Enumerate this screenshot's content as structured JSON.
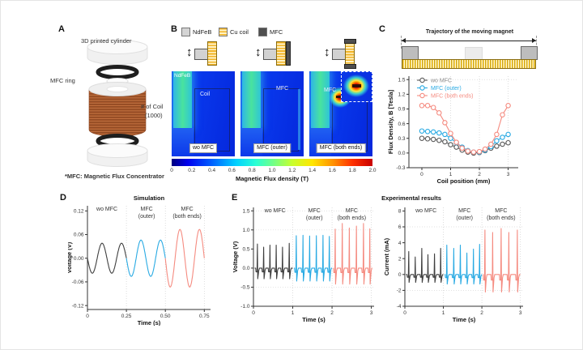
{
  "panelA": {
    "label": "A",
    "ann_cylinder": "3D printed cylinder",
    "ann_ring": "MFC ring",
    "ann_coil1": "# of Coil",
    "ann_coil2": "(1000)",
    "footnote": "*MFC: Magnetic Flux Concentrator"
  },
  "panelB": {
    "label": "B",
    "legend": [
      {
        "name": "NdFeB",
        "color": "#d4d4d4"
      },
      {
        "name": "Cu coil",
        "color": "#f2b325"
      },
      {
        "name": "MFC",
        "color": "#4f4f4f"
      }
    ],
    "maps": [
      {
        "tag": "wo MFC",
        "label_magnet": "NdFeB",
        "label_region": "Coil"
      },
      {
        "tag": "MFC (outer)",
        "label_region": "MFC"
      },
      {
        "tag": "MFC (both ends)",
        "label_region": "MFC"
      }
    ],
    "colorbar": {
      "ticks": [
        "0",
        "0.2",
        "0.4",
        "0.6",
        "0.8",
        "1.0",
        "1.2",
        "1.4",
        "1.6",
        "1.8",
        "2.0"
      ],
      "label": "Magnetic Flux density (T)"
    }
  },
  "panelC": {
    "label": "C",
    "schematic_title": "Trajectory of the moving magnet"
  },
  "panelD": {
    "label": "D"
  },
  "panelE": {
    "label": "E"
  },
  "chart_data": [
    {
      "id": "flux-density",
      "type": "scatter",
      "title": "",
      "xlabel": "Coil position (mm)",
      "ylabel": "Flux Density, B [Tesla]",
      "xlim": [
        -0.45,
        3.35
      ],
      "ylim": [
        -0.3,
        1.57
      ],
      "xticks": [
        0,
        1,
        2,
        3
      ],
      "xtick_labels": [
        "0",
        "1",
        "2",
        "3"
      ],
      "yticks": [
        -0.3,
        0,
        0.3,
        0.6,
        0.9,
        1.2,
        1.5
      ],
      "ytick_labels": [
        "-0.3",
        "0.0",
        "0.3",
        "0.6",
        "0.9",
        "1.2",
        "1.5"
      ],
      "grid_x": [
        1,
        2,
        3
      ],
      "grid_y": [
        1.5
      ],
      "legend": true,
      "x": [
        0,
        0.2,
        0.4,
        0.6,
        0.8,
        1,
        1.2,
        1.4,
        1.6,
        1.8,
        2,
        2.2,
        2.4,
        2.6,
        2.8,
        3
      ],
      "series": [
        {
          "name": "wo MFC",
          "color": "#595959",
          "text_color": "#8c8c8c",
          "marker": true,
          "values": [
            0.3,
            0.29,
            0.28,
            0.26,
            0.23,
            0.17,
            0.12,
            0.06,
            0.02,
            0.0,
            0.01,
            0.05,
            0.1,
            0.14,
            0.18,
            0.21
          ]
        },
        {
          "name": "MFC (outer)",
          "color": "#29aae3",
          "marker": true,
          "values": [
            0.45,
            0.44,
            0.43,
            0.41,
            0.38,
            0.3,
            0.21,
            0.12,
            0.05,
            0.02,
            0.02,
            0.06,
            0.13,
            0.25,
            0.32,
            0.38
          ]
        },
        {
          "name": "MFC (both ends)",
          "color": "#f58b80",
          "marker": true,
          "values": [
            0.97,
            0.97,
            0.93,
            0.82,
            0.62,
            0.4,
            0.22,
            0.1,
            0.04,
            0.02,
            0.03,
            0.08,
            0.18,
            0.38,
            0.78,
            0.97
          ]
        }
      ]
    },
    {
      "id": "sim-voltage",
      "type": "line",
      "title": "Simulation",
      "xlabel": "Time (s)",
      "ylabel": "Voltage (V)",
      "xlim": [
        0,
        0.79
      ],
      "ylim": [
        -0.13,
        0.133
      ],
      "xticks": [
        0,
        0.25,
        0.5,
        0.75
      ],
      "xtick_labels": [
        "0",
        "0.25",
        "0.50",
        "0.75"
      ],
      "yticks": [
        -0.12,
        -0.06,
        0,
        0.06,
        0.12
      ],
      "ytick_labels": [
        "-0.12",
        "-0.06",
        "0.00",
        "0.06",
        "0.12"
      ],
      "grid_x": [
        0.25,
        0.5,
        0.75
      ],
      "annotations": [
        {
          "x": 0.125,
          "lines": [
            "wo MFC"
          ]
        },
        {
          "x": 0.38,
          "lines": [
            "MFC",
            "(outer)"
          ]
        },
        {
          "x": 0.64,
          "lines": [
            "MFC",
            "(both ends)"
          ]
        }
      ],
      "series": [
        {
          "name": "wo MFC",
          "color": "#3f3f3f",
          "wave": "sine",
          "t0": 0,
          "t1": 0.25,
          "amplitude": 0.038,
          "frequency": 8
        },
        {
          "name": "MFC (outer)",
          "color": "#29aae3",
          "wave": "sine",
          "t0": 0.25,
          "t1": 0.5,
          "amplitude": 0.046,
          "frequency": 8
        },
        {
          "name": "MFC (both ends)",
          "color": "#f58b80",
          "wave": "sine",
          "t0": 0.5,
          "t1": 0.75,
          "amplitude": 0.073,
          "frequency": 8
        }
      ]
    },
    {
      "id": "exp-voltage",
      "type": "line",
      "title": "Experimental results",
      "xlabel": "Time (s)",
      "ylabel": "Voltage (V)",
      "xlim": [
        0,
        3.07
      ],
      "ylim": [
        -1.0,
        1.59
      ],
      "xticks": [
        0,
        1,
        2,
        3
      ],
      "xtick_labels": [
        "0",
        "1",
        "2",
        "3"
      ],
      "yticks": [
        -1.0,
        -0.5,
        0,
        0.5,
        1.0,
        1.5
      ],
      "ytick_labels": [
        "-1.0",
        "-0.5",
        "0.0",
        "0.5",
        "1.0",
        "1.5"
      ],
      "grid_x": [
        1,
        2,
        3
      ],
      "grid_y": [
        1.5,
        1.0,
        -0.5
      ],
      "annotations": [
        {
          "x": 0.55,
          "lines": [
            "wo MFC"
          ]
        },
        {
          "x": 1.55,
          "lines": [
            "MFC",
            "(outer)"
          ]
        },
        {
          "x": 2.5,
          "lines": [
            "MFC",
            "(both ends)"
          ]
        }
      ],
      "series": [
        {
          "name": "wo MFC",
          "color": "#3f3f3f",
          "t0": 0.03,
          "t1": 1.0,
          "dip": -0.1,
          "undershoot": -0.28,
          "events": [
            [
              0.1,
              0.63
            ],
            [
              0.26,
              0.55
            ],
            [
              0.42,
              0.6
            ],
            [
              0.58,
              0.6
            ],
            [
              0.74,
              0.55
            ],
            [
              0.91,
              0.65
            ]
          ]
        },
        {
          "name": "MFC (outer)",
          "color": "#29aae3",
          "t0": 1.03,
          "t1": 2.0,
          "dip": -0.11,
          "undershoot": -0.34,
          "events": [
            [
              1.09,
              0.85
            ],
            [
              1.26,
              0.86
            ],
            [
              1.43,
              0.84
            ],
            [
              1.6,
              0.85
            ],
            [
              1.77,
              0.86
            ],
            [
              1.93,
              0.83
            ]
          ]
        },
        {
          "name": "MFC (both ends)",
          "color": "#f58b80",
          "t0": 2.03,
          "t1": 3.0,
          "dip": -0.12,
          "undershoot": -0.42,
          "events": [
            [
              2.08,
              1.02
            ],
            [
              2.26,
              1.17
            ],
            [
              2.44,
              1.05
            ],
            [
              2.62,
              1.1
            ],
            [
              2.8,
              1.17
            ],
            [
              2.96,
              1.03
            ]
          ]
        }
      ]
    },
    {
      "id": "exp-current",
      "type": "line",
      "title": "",
      "xlabel": "Time (s)",
      "ylabel": "Current (mA)",
      "xlim": [
        0,
        3.07
      ],
      "ylim": [
        -4,
        8.45
      ],
      "xticks": [
        0,
        1,
        2,
        3
      ],
      "xtick_labels": [
        "0",
        "1",
        "2",
        "3"
      ],
      "yticks": [
        -4,
        -2,
        0,
        2,
        4,
        6,
        8
      ],
      "ytick_labels": [
        "-4",
        "-2",
        "0",
        "2",
        "4",
        "6",
        "8"
      ],
      "grid_x": [
        1,
        2,
        3
      ],
      "grid_y": [
        6,
        -2
      ],
      "annotations": [
        {
          "x": 0.55,
          "lines": [
            "wo MFC"
          ]
        },
        {
          "x": 1.55,
          "lines": [
            "MFC",
            "(outer)"
          ]
        },
        {
          "x": 2.5,
          "lines": [
            "MFC",
            "(both ends)"
          ]
        }
      ],
      "series": [
        {
          "name": "wo MFC",
          "color": "#3f3f3f",
          "t0": 0.03,
          "t1": 1.0,
          "dip": -0.35,
          "undershoot": -1.0,
          "events": [
            [
              0.1,
              2.9
            ],
            [
              0.27,
              2.2
            ],
            [
              0.44,
              3.3
            ],
            [
              0.6,
              2.5
            ],
            [
              0.77,
              2.6
            ],
            [
              0.93,
              3.3
            ]
          ]
        },
        {
          "name": "MFC (outer)",
          "color": "#29aae3",
          "t0": 1.03,
          "t1": 2.0,
          "dip": -0.4,
          "undershoot": -1.2,
          "events": [
            [
              1.09,
              3.7
            ],
            [
              1.27,
              3.3
            ],
            [
              1.44,
              3.7
            ],
            [
              1.61,
              2.7
            ],
            [
              1.78,
              3.2
            ],
            [
              1.94,
              3.8
            ]
          ]
        },
        {
          "name": "MFC (both ends)",
          "color": "#f58b80",
          "t0": 2.03,
          "t1": 3.0,
          "dip": -0.7,
          "undershoot": -2.2,
          "events": [
            [
              2.08,
              5.6
            ],
            [
              2.28,
              5.3
            ],
            [
              2.5,
              5.8
            ],
            [
              2.7,
              5.3
            ],
            [
              2.92,
              5.6
            ]
          ]
        }
      ]
    }
  ]
}
